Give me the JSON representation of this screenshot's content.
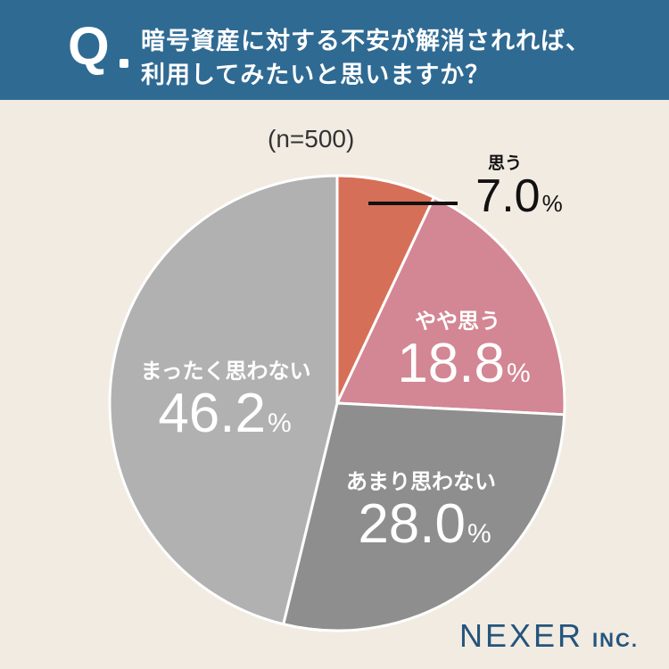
{
  "header": {
    "q_mark": "Q",
    "question_line1": "暗号資産に対する不安が解消されれば、",
    "question_line2": "利用してみたいと思いますか？"
  },
  "sample_size": "(n=500)",
  "brand": {
    "name": "NEXER",
    "suffix": "INC."
  },
  "colors": {
    "header": "#2f6a93",
    "background": "#f1ebe2",
    "slice_1": "#d66f57",
    "slice_2": "#d38693",
    "slice_3": "#8e8e8e",
    "slice_4": "#b1b1b1",
    "brand": "#24547c"
  },
  "chart_data": {
    "type": "pie",
    "categories": [
      "思う",
      "やや思う",
      "あまり思わない",
      "まったく思わない"
    ],
    "values": [
      7.0,
      18.8,
      28.0,
      46.2
    ],
    "value_labels": [
      "7.0",
      "18.8",
      "28.0",
      "46.2"
    ],
    "unit": "%",
    "start": "12 o'clock",
    "direction": "clockwise"
  }
}
